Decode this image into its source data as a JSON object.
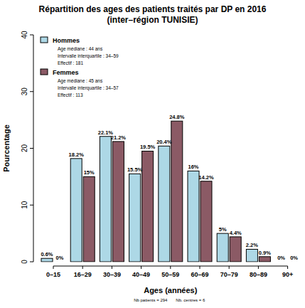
{
  "chart_data": {
    "type": "bar",
    "title": "Répartition des ages des patients traités par DP en 2016",
    "subtitle": "(inter–région TUNISIE)",
    "x_label": "Ages (années)",
    "y_label": "Pourcentage",
    "footnote": [
      "Nb patients = 294",
      "Nb. centres = 6"
    ],
    "categories": [
      "0–15",
      "16–29",
      "30–39",
      "40–49",
      "50–59",
      "60–69",
      "70–79",
      "80–89",
      "90+"
    ],
    "series": [
      {
        "name": "Hommes",
        "color": "#add8e6",
        "notes": [
          "Age médiane : 44 ans",
          "Intervalle interquartile : 34–59",
          "Effectif : 181"
        ],
        "values": [
          0.6,
          18.2,
          22.1,
          15.5,
          20.4,
          16,
          5,
          2.2,
          0
        ],
        "value_labels": [
          "0.6%",
          "18.2%",
          "22.1%",
          "15.5%",
          "20.4%",
          "16%",
          "5%",
          "2.2%",
          "0%"
        ]
      },
      {
        "name": "Femmes",
        "color": "#8b5a65",
        "notes": [
          "Age médiane : 45 ans",
          "Intervalle interquartile : 34–57",
          "Effectif : 113"
        ],
        "values": [
          0,
          15,
          21.2,
          19.5,
          24.8,
          14.2,
          4.4,
          0.9,
          0
        ],
        "value_labels": [
          "0%",
          "15%",
          "21.2%",
          "19.5%",
          "24.8%",
          "14.2%",
          "4.4%",
          "0.9%",
          "0%"
        ]
      }
    ],
    "ylim": [
      0,
      40
    ],
    "yticks": [
      0,
      10,
      20,
      30,
      40
    ],
    "grid": false,
    "legend": "top-left",
    "data_labels": true
  }
}
